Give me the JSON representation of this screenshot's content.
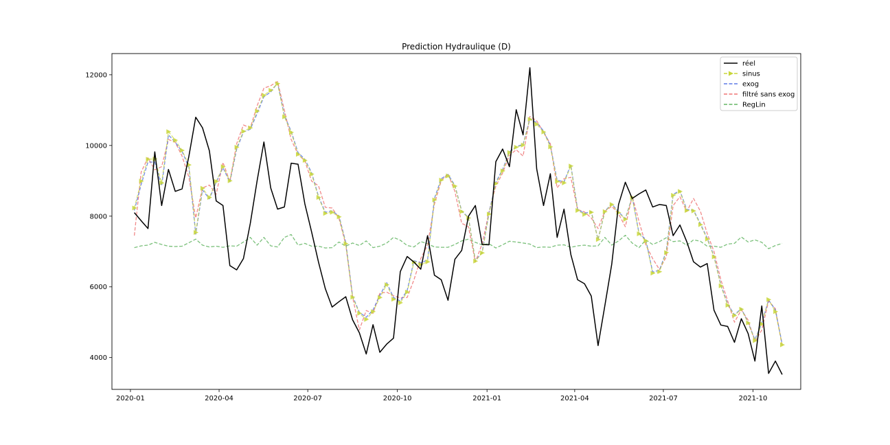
{
  "chart_data": {
    "type": "line",
    "title": "Prediction Hydraulique (D)",
    "xlabel": "",
    "ylabel": "",
    "x_ticks": [
      "2020-01",
      "2020-04",
      "2020-07",
      "2020-10",
      "2021-01",
      "2021-04",
      "2021-07",
      "2021-10"
    ],
    "y_ticks": [
      4000,
      6000,
      8000,
      10000,
      12000
    ],
    "xlim": [
      "2019-12-13",
      "2021-11-19"
    ],
    "ylim": [
      3100,
      12600
    ],
    "grid": false,
    "legend_position": "top-right",
    "x": [
      "2020-01-05",
      "2020-01-12",
      "2020-01-19",
      "2020-01-26",
      "2020-02-02",
      "2020-02-09",
      "2020-02-16",
      "2020-02-23",
      "2020-03-01",
      "2020-03-08",
      "2020-03-15",
      "2020-03-22",
      "2020-03-29",
      "2020-04-05",
      "2020-04-12",
      "2020-04-19",
      "2020-04-26",
      "2020-05-03",
      "2020-05-10",
      "2020-05-17",
      "2020-05-24",
      "2020-05-31",
      "2020-06-07",
      "2020-06-14",
      "2020-06-21",
      "2020-06-28",
      "2020-07-05",
      "2020-07-12",
      "2020-07-19",
      "2020-07-26",
      "2020-08-02",
      "2020-08-09",
      "2020-08-16",
      "2020-08-23",
      "2020-08-30",
      "2020-09-06",
      "2020-09-13",
      "2020-09-20",
      "2020-09-27",
      "2020-10-04",
      "2020-10-11",
      "2020-10-18",
      "2020-10-25",
      "2020-11-01",
      "2020-11-08",
      "2020-11-15",
      "2020-11-22",
      "2020-11-29",
      "2020-12-06",
      "2020-12-13",
      "2020-12-20",
      "2020-12-27",
      "2021-01-03",
      "2021-01-10",
      "2021-01-17",
      "2021-01-24",
      "2021-01-31",
      "2021-02-07",
      "2021-02-14",
      "2021-02-21",
      "2021-02-28",
      "2021-03-07",
      "2021-03-14",
      "2021-03-21",
      "2021-03-28",
      "2021-04-04",
      "2021-04-11",
      "2021-04-18",
      "2021-04-25",
      "2021-05-02",
      "2021-05-09",
      "2021-05-16",
      "2021-05-23",
      "2021-05-30",
      "2021-06-06",
      "2021-06-13",
      "2021-06-20",
      "2021-06-27",
      "2021-07-04",
      "2021-07-11",
      "2021-07-18",
      "2021-07-25",
      "2021-08-01",
      "2021-08-08",
      "2021-08-15",
      "2021-08-22",
      "2021-08-29",
      "2021-09-05",
      "2021-09-12",
      "2021-09-19",
      "2021-09-26",
      "2021-10-03",
      "2021-10-10",
      "2021-10-17",
      "2021-10-24",
      "2021-10-31"
    ],
    "series": [
      {
        "name": "réel",
        "color": "#000000",
        "style": "solid",
        "values": [
          8100,
          7870,
          7650,
          9820,
          8300,
          9320,
          8700,
          8770,
          9700,
          10800,
          10500,
          9850,
          8430,
          8300,
          6600,
          6480,
          6800,
          7800,
          9000,
          10100,
          8800,
          8200,
          8260,
          9500,
          9470,
          8350,
          7550,
          6700,
          5950,
          5430,
          5580,
          5720,
          5070,
          4700,
          4100,
          4930,
          4150,
          4380,
          4550,
          6430,
          6860,
          6700,
          6500,
          7450,
          6330,
          6200,
          5620,
          6780,
          7030,
          8000,
          8300,
          7200,
          7190,
          9540,
          9900,
          9400,
          11010,
          10300,
          12200,
          9340,
          8300,
          9200,
          7400,
          8200,
          6920,
          6200,
          6090,
          5740,
          4340,
          5470,
          6640,
          8330,
          8960,
          8500,
          8630,
          8740,
          8260,
          8330,
          8300,
          7450,
          7750,
          7280,
          6710,
          6560,
          6660,
          5340,
          4920,
          4880,
          4430,
          5100,
          4680,
          3900,
          5460,
          3550,
          3900,
          3520
        ]
      },
      {
        "name": "sinus",
        "color": "#c8d63a",
        "style": "dashed-triangle",
        "values": [
          8230,
          8990,
          9610,
          9620,
          8940,
          10390,
          10150,
          9860,
          9450,
          7540,
          8790,
          8530,
          8980,
          9400,
          9000,
          9950,
          10400,
          10500,
          10970,
          11420,
          11560,
          11750,
          10810,
          10370,
          9750,
          9580,
          9190,
          8530,
          8080,
          8110,
          7980,
          7220,
          5710,
          5250,
          5080,
          5300,
          5700,
          6060,
          5650,
          5550,
          5850,
          6700,
          6630,
          6710,
          8460,
          9020,
          9140,
          8850,
          8130,
          7950,
          6730,
          6960,
          8060,
          8920,
          9280,
          9800,
          9950,
          10010,
          10740,
          10600,
          10380,
          9960,
          8980,
          8940,
          9420,
          8160,
          8050,
          8110,
          7340,
          8130,
          8330,
          8100,
          7910,
          8530,
          7500,
          7300,
          6390,
          6430,
          6970,
          8590,
          8700,
          8160,
          8150,
          7760,
          7350,
          6850,
          6030,
          5480,
          5190,
          5370,
          4980,
          4480,
          4950,
          5640,
          5300,
          4360
        ]
      },
      {
        "name": "exog",
        "color": "#5b78e6",
        "style": "dashed",
        "values": [
          8160,
          8900,
          9530,
          9530,
          8860,
          10300,
          10090,
          9830,
          9380,
          7490,
          8740,
          8490,
          8960,
          9370,
          8960,
          9890,
          10380,
          10460,
          10900,
          11380,
          11510,
          11770,
          10850,
          10400,
          9800,
          9610,
          9230,
          8560,
          8110,
          8150,
          8010,
          7260,
          5740,
          5280,
          5140,
          5350,
          5760,
          6120,
          5700,
          5600,
          5900,
          6740,
          6680,
          6760,
          8500,
          9060,
          9180,
          8870,
          8150,
          7960,
          6740,
          6980,
          8090,
          8960,
          9320,
          9820,
          9970,
          10030,
          10760,
          10650,
          10410,
          10000,
          9020,
          8970,
          9450,
          8190,
          8080,
          8130,
          7340,
          8140,
          8350,
          8120,
          7930,
          8550,
          7520,
          7340,
          6420,
          6470,
          7010,
          8620,
          8720,
          8190,
          8170,
          7790,
          7380,
          6870,
          6060,
          5510,
          5210,
          5390,
          4990,
          4510,
          4970,
          5630,
          5350,
          4380
        ]
      },
      {
        "name": "filtré sans exog",
        "color": "#ef7474",
        "style": "dashed",
        "values": [
          7450,
          9250,
          9650,
          9310,
          9400,
          10170,
          10090,
          9700,
          9100,
          7950,
          8800,
          8880,
          8620,
          9520,
          8980,
          10050,
          10580,
          10500,
          11120,
          11620,
          11690,
          11810,
          11000,
          10170,
          9750,
          9560,
          8990,
          8860,
          8250,
          8230,
          7940,
          7200,
          5720,
          4780,
          5330,
          5250,
          5820,
          5850,
          5750,
          5690,
          5700,
          6200,
          6800,
          7180,
          8340,
          9000,
          9200,
          8700,
          7800,
          7700,
          6700,
          7220,
          8110,
          8850,
          9220,
          9720,
          9880,
          9700,
          10820,
          10700,
          10370,
          10050,
          8800,
          9060,
          9100,
          8190,
          8120,
          7950,
          7650,
          8140,
          8280,
          8070,
          7700,
          8570,
          7850,
          7190,
          6800,
          6490,
          6850,
          8300,
          8550,
          8130,
          8500,
          8140,
          7510,
          7000,
          6200,
          5600,
          5000,
          5350,
          5060,
          4450,
          4780,
          5600,
          5380,
          4330
        ]
      },
      {
        "name": "RegLin",
        "color": "#63b563",
        "style": "dashed",
        "values": [
          7110,
          7160,
          7180,
          7260,
          7200,
          7150,
          7140,
          7150,
          7250,
          7350,
          7180,
          7130,
          7150,
          7120,
          7160,
          7150,
          7270,
          7400,
          7180,
          7400,
          7160,
          7130,
          7400,
          7480,
          7180,
          7230,
          7150,
          7150,
          7100,
          7110,
          7270,
          7150,
          7240,
          7170,
          7300,
          7110,
          7150,
          7240,
          7400,
          7320,
          7170,
          7130,
          7280,
          7220,
          7130,
          7120,
          7120,
          7200,
          7300,
          7350,
          7260,
          7190,
          7220,
          7100,
          7190,
          7290,
          7270,
          7240,
          7210,
          7110,
          7130,
          7120,
          7180,
          7190,
          7120,
          7160,
          7180,
          7150,
          7160,
          7400,
          7180,
          7300,
          7460,
          7240,
          7110,
          7330,
          7200,
          7280,
          7390,
          7280,
          7300,
          7180,
          7330,
          7290,
          7150,
          7150,
          7120,
          7210,
          7230,
          7410,
          7270,
          7330,
          7260,
          7080,
          7170,
          7230
        ]
      }
    ]
  }
}
